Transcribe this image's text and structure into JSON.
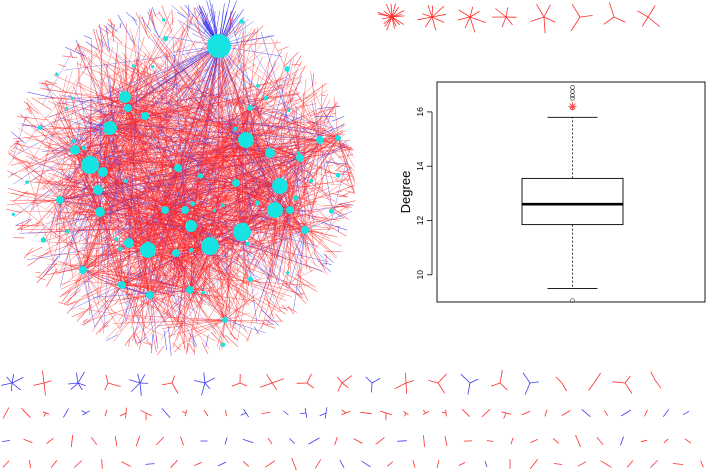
{
  "colors": {
    "edge_red": "#ff2a2a",
    "edge_blue": "#3b3bf0",
    "node_cyan": "#17e3e3",
    "box_stroke": "#000000",
    "outlier_red": "#ff4d4d",
    "outlier_black": "#444444"
  },
  "network": {
    "name": "network-graph",
    "style": "circular-force-layout",
    "edge_colors": [
      "red",
      "blue"
    ],
    "node_color": "cyan"
  },
  "small_components": {
    "top_row_stars": 8,
    "bottom_rows": 4
  },
  "chart_data": {
    "type": "boxplot",
    "title": "",
    "xlabel": "",
    "ylabel": "Degree",
    "ylim": [
      9,
      17.1
    ],
    "yticks": [
      10,
      12,
      14,
      16
    ],
    "stats": {
      "min_whisker": 9.5,
      "q1": 11.85,
      "median": 12.6,
      "q3": 13.55,
      "max_whisker": 15.8
    },
    "outliers_high": [
      16.15,
      16.2,
      16.5,
      16.6,
      16.75,
      16.9
    ],
    "outliers_low": [
      9.05
    ],
    "highlighted_outlier": 16.2,
    "grid": false
  }
}
